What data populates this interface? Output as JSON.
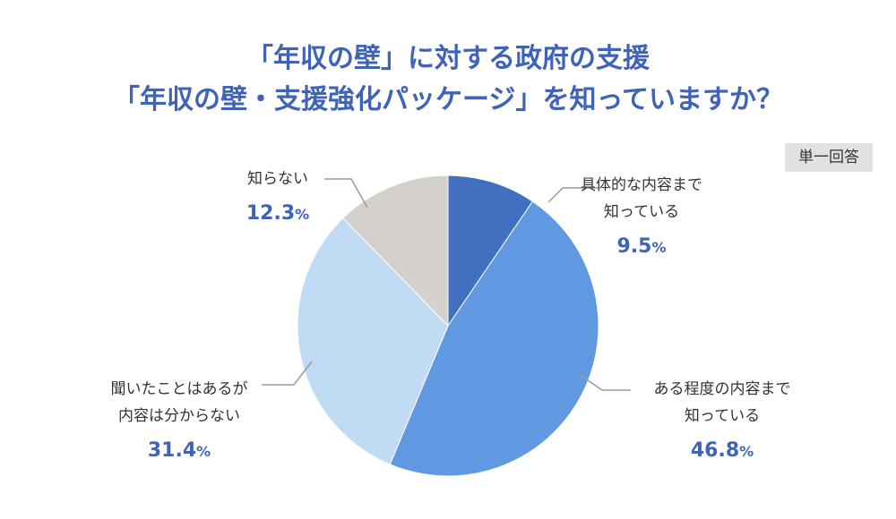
{
  "title": {
    "line1": "「年収の壁」に対する政府の支援",
    "line2": "「年収の壁・支援強化パッケージ」を知っていますか？"
  },
  "badge": "単一回答",
  "colors": {
    "title": "#3f63b8",
    "percent": "#3f63b8",
    "leader": "#9a9a9a"
  },
  "chart_data": {
    "type": "pie",
    "start_angle_deg": 0,
    "direction": "clockwise",
    "unit": "%",
    "slices": [
      {
        "label_lines": [
          "具体的な内容まで",
          "知っている"
        ],
        "value": 9.5,
        "value_text": "9.5",
        "color": "#4170c0"
      },
      {
        "label_lines": [
          "ある程度の内容まで",
          "知っている"
        ],
        "value": 46.8,
        "value_text": "46.8",
        "color": "#6099e1"
      },
      {
        "label_lines": [
          "聞いたことはあるが",
          "内容は分からない"
        ],
        "value": 31.4,
        "value_text": "31.4",
        "color": "#c1dbf4"
      },
      {
        "label_lines": [
          "知らない"
        ],
        "value": 12.3,
        "value_text": "12.3",
        "color": "#d4d1cd"
      }
    ]
  }
}
